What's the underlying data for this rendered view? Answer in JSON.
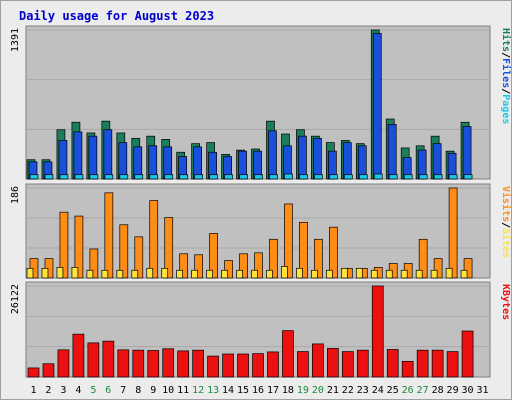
{
  "title": "Daily usage for August 2023",
  "colors": {
    "background": "#ececec",
    "panel": "#c0c0c0",
    "title": "#0000cc",
    "hits": "#1a7e5a",
    "files": "#1a4fdc",
    "pages": "#18c8e6",
    "visits": "#ff8c14",
    "sites": "#ffe23a",
    "kbytes": "#ec1010",
    "weekend_day": "#1a8a3c"
  },
  "chart_data": [
    {
      "type": "bar",
      "panel": "top",
      "max_label": "1391",
      "ylim": [
        0,
        1391
      ],
      "legend": [
        "Pages",
        "Files",
        "Hits"
      ],
      "categories": [
        "1",
        "2",
        "3",
        "4",
        "5",
        "6",
        "7",
        "8",
        "9",
        "10",
        "11",
        "12",
        "13",
        "14",
        "15",
        "16",
        "17",
        "18",
        "19",
        "20",
        "21",
        "22",
        "23",
        "24",
        "25",
        "26",
        "27",
        "28",
        "29",
        "30",
        "31"
      ],
      "weekend_days": [
        "5",
        "6",
        "12",
        "13",
        "19",
        "20",
        "26",
        "27"
      ],
      "series": [
        {
          "name": "Hits",
          "values": [
            180,
            180,
            460,
            530,
            430,
            540,
            430,
            380,
            400,
            370,
            250,
            330,
            340,
            230,
            270,
            280,
            540,
            420,
            460,
            400,
            340,
            360,
            330,
            1391,
            560,
            290,
            310,
            400,
            260,
            530,
            0
          ]
        },
        {
          "name": "Files",
          "values": [
            160,
            160,
            360,
            440,
            400,
            460,
            340,
            300,
            310,
            300,
            210,
            300,
            250,
            210,
            260,
            260,
            450,
            310,
            400,
            380,
            260,
            340,
            310,
            1360,
            510,
            200,
            270,
            330,
            240,
            490,
            0
          ]
        },
        {
          "name": "Pages",
          "values": [
            40,
            40,
            40,
            40,
            40,
            40,
            40,
            40,
            40,
            40,
            40,
            40,
            40,
            40,
            40,
            40,
            40,
            60,
            40,
            40,
            40,
            40,
            40,
            60,
            40,
            40,
            40,
            40,
            40,
            40,
            0
          ]
        }
      ]
    },
    {
      "type": "bar",
      "panel": "middle",
      "max_label": "186",
      "ylim": [
        0,
        186
      ],
      "legend": [
        "Sites",
        "Visits"
      ],
      "categories": [
        "1",
        "2",
        "3",
        "4",
        "5",
        "6",
        "7",
        "8",
        "9",
        "10",
        "11",
        "12",
        "13",
        "14",
        "15",
        "16",
        "17",
        "18",
        "19",
        "20",
        "21",
        "22",
        "23",
        "24",
        "25",
        "26",
        "27",
        "28",
        "29",
        "30",
        "31"
      ],
      "series": [
        {
          "name": "Visits",
          "values": [
            40,
            40,
            136,
            128,
            60,
            176,
            110,
            85,
            160,
            125,
            50,
            48,
            92,
            36,
            50,
            52,
            80,
            153,
            115,
            80,
            105,
            20,
            20,
            22,
            30,
            30,
            80,
            40,
            186,
            40,
            0
          ]
        },
        {
          "name": "Sites",
          "values": [
            20,
            20,
            22,
            22,
            16,
            16,
            16,
            16,
            20,
            20,
            16,
            16,
            16,
            16,
            16,
            16,
            16,
            24,
            20,
            16,
            16,
            20,
            20,
            16,
            16,
            16,
            16,
            16,
            20,
            16,
            0
          ]
        }
      ]
    },
    {
      "type": "bar",
      "panel": "bottom",
      "max_label": "26122",
      "ylim": [
        0,
        26122
      ],
      "legend": [
        "KBytes"
      ],
      "categories": [
        "1",
        "2",
        "3",
        "4",
        "5",
        "6",
        "7",
        "8",
        "9",
        "10",
        "11",
        "12",
        "13",
        "14",
        "15",
        "16",
        "17",
        "18",
        "19",
        "20",
        "21",
        "22",
        "23",
        "24",
        "25",
        "26",
        "27",
        "28",
        "29",
        "30",
        "31"
      ],
      "series": [
        {
          "name": "KBytes",
          "values": [
            2600,
            3800,
            7800,
            12300,
            9800,
            10300,
            7800,
            7700,
            7600,
            8100,
            7500,
            7700,
            6000,
            6600,
            6600,
            6700,
            7200,
            13300,
            7300,
            9500,
            8200,
            7300,
            7700,
            26122,
            7900,
            4500,
            7700,
            7700,
            7300,
            13200,
            0
          ]
        }
      ]
    }
  ]
}
